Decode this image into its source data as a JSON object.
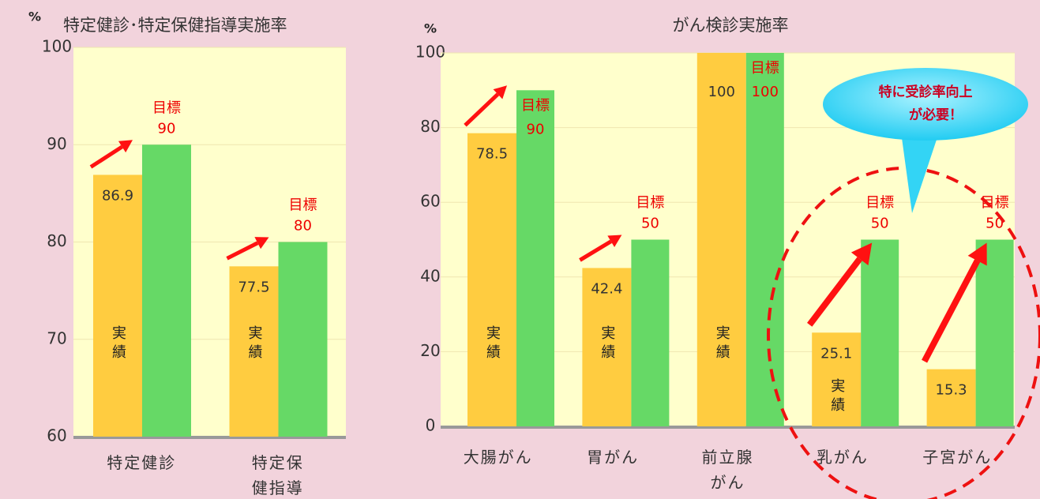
{
  "chart_data": [
    {
      "type": "bar",
      "unit": "%",
      "title": "特定健診･特定保健指導実施率",
      "categories": [
        "特定健診",
        "特定保健指導"
      ],
      "series": [
        {
          "name": "実績",
          "color": "#ffcc40",
          "values": [
            86.9,
            77.5
          ]
        },
        {
          "name": "目標",
          "color": "#66d966",
          "values": [
            90,
            80
          ]
        }
      ],
      "ylim": [
        60,
        100
      ],
      "yticks": [
        60,
        70,
        80,
        90,
        100
      ],
      "grid": true
    },
    {
      "type": "bar",
      "unit": "%",
      "title": "がん検診実施率",
      "categories": [
        "大腸がん",
        "胃がん",
        "前立腺がん",
        "乳がん",
        "子宮がん"
      ],
      "series": [
        {
          "name": "実績",
          "color": "#ffcc40",
          "values": [
            78.5,
            42.4,
            100,
            25.1,
            15.3
          ]
        },
        {
          "name": "目標",
          "color": "#66d966",
          "values": [
            90,
            50,
            100,
            50,
            50
          ]
        }
      ],
      "ylim": [
        0,
        100
      ],
      "yticks": [
        0,
        20,
        40,
        60,
        80,
        100
      ],
      "grid": true,
      "callout": [
        "特に受診率向上",
        "が必要！"
      ]
    }
  ]
}
